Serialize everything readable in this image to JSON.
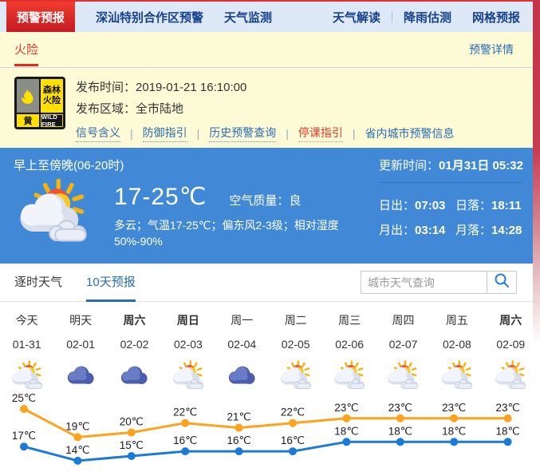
{
  "colors": {
    "accent_red": "#e12f2f",
    "nav_bg": "#dde9f6",
    "nav_text": "#17418e",
    "panel_yellow": "#fdfbd6",
    "panel_blue": "#4189d6",
    "link_blue": "#2a6cb5",
    "warning_level_yellow": "#ffe100",
    "high_temp_line": "#ffa21c",
    "low_temp_line": "#1b7ad8"
  },
  "nav": {
    "active": "预警预报",
    "items": [
      "深汕特别合作区预警",
      "天气监测"
    ],
    "right_items": [
      "天气解读",
      "降雨估测",
      "网格预报"
    ]
  },
  "warning": {
    "tab": "火险",
    "details_link": "预警详情",
    "icon": {
      "name": "forest-fire-yellow-warning",
      "type_line1": "森林",
      "type_line2": "火险",
      "level": "黄",
      "level_en": "WILD FIRE"
    },
    "publish_time_label": "发布时间：",
    "publish_time": "2019-01-21 16:10:00",
    "publish_area_label": "发布区域：",
    "publish_area": "全市陆地",
    "links": [
      {
        "label": "信号含义",
        "highlight": false
      },
      {
        "label": "防御指引",
        "highlight": false
      },
      {
        "label": "历史预警查询",
        "highlight": false
      },
      {
        "label": "停课指引",
        "highlight": true
      },
      {
        "label": "省内城市预警信息",
        "highlight": false
      }
    ],
    "link_separator": "|"
  },
  "current": {
    "period": "早上至傍晚(06-20时)",
    "icon": "partly-cloudy",
    "temp_range": "17-25℃",
    "air_quality_label": "空气质量：",
    "air_quality": "良",
    "description": "多云；气温17-25℃；偏东风2-3级；相对湿度50%-90%",
    "update_label": "更新时间：",
    "update_time": "01月31日 05:32",
    "sunrise_label": "日出：",
    "sunrise": "07:03",
    "sunset_label": "日落：",
    "sunset": "18:11",
    "moonrise_label": "月出：",
    "moonrise": "03:14",
    "moonset_label": "月落：",
    "moonset": "14:28"
  },
  "tabs": {
    "items": [
      {
        "label": "逐时天气",
        "active": false
      },
      {
        "label": "10天预报",
        "active": true
      }
    ]
  },
  "search": {
    "placeholder": "城市天气查询"
  },
  "forecast": {
    "days": [
      {
        "name": "今天",
        "date": "01-31",
        "icon": "partly-cloudy",
        "bold": false
      },
      {
        "name": "明天",
        "date": "02-01",
        "icon": "cloudy",
        "bold": false
      },
      {
        "name": "周六",
        "date": "02-02",
        "icon": "cloudy",
        "bold": true
      },
      {
        "name": "周日",
        "date": "02-03",
        "icon": "partly-cloudy",
        "bold": true
      },
      {
        "name": "周一",
        "date": "02-04",
        "icon": "cloudy",
        "bold": false
      },
      {
        "name": "周二",
        "date": "02-05",
        "icon": "partly-cloudy",
        "bold": false
      },
      {
        "name": "周三",
        "date": "02-06",
        "icon": "partly-cloudy",
        "bold": false
      },
      {
        "name": "周四",
        "date": "02-07",
        "icon": "partly-cloudy",
        "bold": false
      },
      {
        "name": "周五",
        "date": "02-08",
        "icon": "partly-cloudy",
        "bold": false
      },
      {
        "name": "周六",
        "date": "02-09",
        "icon": "partly-cloudy",
        "bold": true
      }
    ]
  },
  "chart_data": {
    "type": "line",
    "categories": [
      "01-31",
      "02-01",
      "02-02",
      "02-03",
      "02-04",
      "02-05",
      "02-06",
      "02-07",
      "02-08",
      "02-09"
    ],
    "series": [
      {
        "name": "high-temperature",
        "color": "#ffa21c",
        "values": [
          25,
          19,
          20,
          22,
          21,
          22,
          23,
          23,
          23,
          23
        ]
      },
      {
        "name": "low-temperature",
        "color": "#1b7ad8",
        "values": [
          17,
          14,
          15,
          16,
          16,
          16,
          18,
          18,
          18,
          18
        ]
      }
    ],
    "unit": "℃",
    "ylim": [
      13,
      27
    ],
    "grid": false,
    "legend": "none",
    "data_labels": true
  }
}
